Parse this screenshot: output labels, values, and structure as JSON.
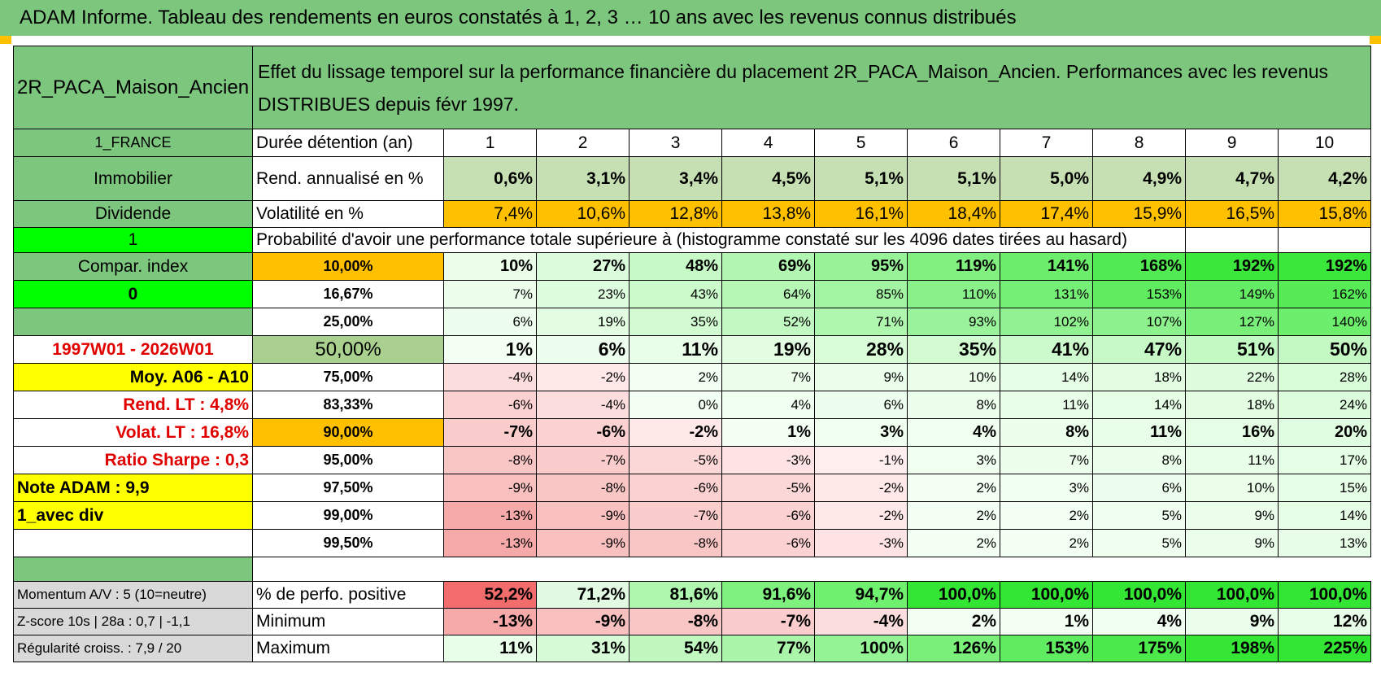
{
  "title": "ADAM Informe. Tableau des rendements en euros constatés à 1, 2, 3 … 10 ans avec les revenus connus distribués",
  "header": {
    "asset": "2R_PACA_Maison_Ancien",
    "description": "Effet du lissage temporel sur la performance financière du placement 2R_PACA_Maison_Ancien. Performances avec les revenus DISTRIBUES depuis févr 1997."
  },
  "left_labels": {
    "country": "1_FRANCE",
    "type": "Immobilier",
    "income": "Dividende",
    "index_flag": "1",
    "compar": "Compar. index",
    "compar_flag": "0",
    "empty": "",
    "period": "1997W01 - 2026W01",
    "moy": "Moy. A06 - A10",
    "rend_lt": "Rend. LT :    4,8%",
    "volat_lt": "Volat. LT :    16,8%",
    "sharpe": "Ratio Sharpe :    0,3",
    "note": "Note ADAM : 9,9",
    "avec_div": "1_avec div",
    "momentum": "Momentum A/V : 5 (10=neutre)",
    "zscore": "Z-score 10s | 28a : 0,7 | -1,1",
    "regularite": "Régularité croiss. : 7,9 / 20"
  },
  "duration_label": "Durée détention (an)",
  "years": [
    "1",
    "2",
    "3",
    "4",
    "5",
    "6",
    "7",
    "8",
    "9",
    "10"
  ],
  "rend_label": "Rend. annualisé en %",
  "rend": [
    "0,6%",
    "3,1%",
    "3,4%",
    "4,5%",
    "5,1%",
    "5,1%",
    "5,0%",
    "4,9%",
    "4,7%",
    "4,2%"
  ],
  "vol_label": "Volatilité en %",
  "vol": [
    "7,4%",
    "10,6%",
    "12,8%",
    "13,8%",
    "16,1%",
    "18,4%",
    "17,4%",
    "15,9%",
    "16,5%",
    "15,8%"
  ],
  "prob_label": "Probabilité d'avoir une performance totale supérieure à (histogramme constaté sur les 4096 dates tirées au hasard)",
  "quantiles": [
    {
      "label": "10,00%",
      "values": [
        "10%",
        "27%",
        "48%",
        "69%",
        "95%",
        "119%",
        "141%",
        "168%",
        "192%",
        "192%"
      ]
    },
    {
      "label": "16,67%",
      "values": [
        "7%",
        "23%",
        "43%",
        "64%",
        "85%",
        "110%",
        "131%",
        "153%",
        "149%",
        "162%"
      ]
    },
    {
      "label": "25,00%",
      "values": [
        "6%",
        "19%",
        "35%",
        "52%",
        "71%",
        "93%",
        "102%",
        "107%",
        "127%",
        "140%"
      ]
    },
    {
      "label": "50,00%",
      "values": [
        "1%",
        "6%",
        "11%",
        "19%",
        "28%",
        "35%",
        "41%",
        "47%",
        "51%",
        "50%"
      ]
    },
    {
      "label": "75,00%",
      "values": [
        "-4%",
        "-2%",
        "2%",
        "7%",
        "9%",
        "10%",
        "14%",
        "18%",
        "22%",
        "28%"
      ]
    },
    {
      "label": "83,33%",
      "values": [
        "-6%",
        "-4%",
        "0%",
        "4%",
        "6%",
        "8%",
        "11%",
        "14%",
        "18%",
        "24%"
      ]
    },
    {
      "label": "90,00%",
      "values": [
        "-7%",
        "-6%",
        "-2%",
        "1%",
        "3%",
        "4%",
        "8%",
        "11%",
        "16%",
        "20%"
      ]
    },
    {
      "label": "95,00%",
      "values": [
        "-8%",
        "-7%",
        "-5%",
        "-3%",
        "-1%",
        "3%",
        "7%",
        "8%",
        "11%",
        "17%"
      ]
    },
    {
      "label": "97,50%",
      "values": [
        "-9%",
        "-8%",
        "-6%",
        "-5%",
        "-2%",
        "2%",
        "3%",
        "6%",
        "10%",
        "15%"
      ]
    },
    {
      "label": "99,00%",
      "values": [
        "-13%",
        "-9%",
        "-7%",
        "-6%",
        "-2%",
        "2%",
        "2%",
        "5%",
        "9%",
        "14%"
      ]
    },
    {
      "label": "99,50%",
      "values": [
        "-13%",
        "-9%",
        "-8%",
        "-6%",
        "-3%",
        "2%",
        "2%",
        "5%",
        "9%",
        "13%"
      ]
    }
  ],
  "stats": [
    {
      "label": "% de perfo. positive",
      "values": [
        "52,2%",
        "71,2%",
        "81,6%",
        "91,6%",
        "94,7%",
        "100,0%",
        "100,0%",
        "100,0%",
        "100,0%",
        "100,0%"
      ]
    },
    {
      "label": "Minimum",
      "values": [
        "-13%",
        "-9%",
        "-8%",
        "-7%",
        "-4%",
        "2%",
        "1%",
        "4%",
        "9%",
        "12%"
      ]
    },
    {
      "label": "Maximum",
      "values": [
        "11%",
        "31%",
        "54%",
        "77%",
        "100%",
        "126%",
        "153%",
        "175%",
        "198%",
        "225%"
      ]
    }
  ],
  "colors": {
    "green_header": "#7dc67e",
    "bright_green": "#00ff00",
    "orange": "#ffc000",
    "yellow": "#ffff00",
    "red_text": "#e00000",
    "grey": "#d9d9d9"
  }
}
